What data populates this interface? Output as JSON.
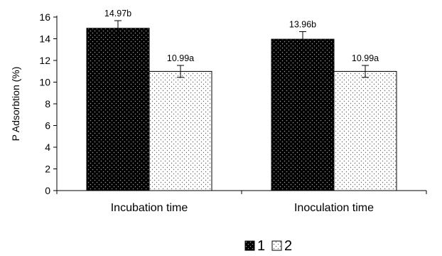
{
  "chart_data": {
    "type": "bar",
    "title": "",
    "xlabel": "",
    "ylabel": "P Adsorbtion (%)",
    "ylim": [
      0,
      16
    ],
    "yticks": [
      0,
      2,
      4,
      6,
      8,
      10,
      12,
      14,
      16
    ],
    "categories": [
      "Incubation time",
      "Inoculation time"
    ],
    "series": [
      {
        "name": "1",
        "values": [
          14.97,
          13.96
        ],
        "errors": [
          0.7,
          0.7
        ],
        "labels": [
          "14.97b",
          "13.96b"
        ],
        "color": "#000000",
        "pattern": "dark-dots"
      },
      {
        "name": "2",
        "values": [
          10.99,
          10.99
        ],
        "errors": [
          0.55,
          0.55
        ],
        "labels": [
          "10.99a",
          "10.99a"
        ],
        "color": "#ffffff",
        "pattern": "light-dots"
      }
    ],
    "grid": false,
    "legend_position": "bottom-center"
  }
}
